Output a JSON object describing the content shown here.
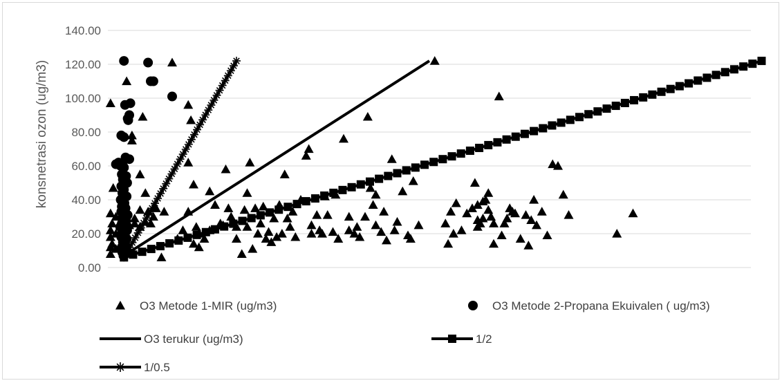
{
  "chart_data": {
    "type": "scatter",
    "title": "",
    "xlabel": "",
    "ylabel": "konsnetrasi ozon (ug/m3)",
    "ylim": [
      0,
      140
    ],
    "xlim": [
      0,
      120
    ],
    "y_ticks": [
      "0.00",
      "20.00",
      "40.00",
      "60.00",
      "80.00",
      "100.00",
      "120.00",
      "140.00"
    ],
    "grid": "horizontal",
    "legend_position": "bottom",
    "series": [
      {
        "name": "O3 Metode 1-MIR (ug/m3)",
        "marker": "triangle",
        "points": [
          [
            0.5,
            97
          ],
          [
            0.5,
            32
          ],
          [
            0.5,
            22
          ],
          [
            0.5,
            18
          ],
          [
            0.5,
            12
          ],
          [
            0.5,
            8
          ],
          [
            0.8,
            26
          ],
          [
            0.8,
            14
          ],
          [
            1,
            47
          ],
          [
            1.5,
            30
          ],
          [
            1.5,
            20
          ],
          [
            1.5,
            11
          ],
          [
            3,
            62
          ],
          [
            3,
            44
          ],
          [
            3,
            31
          ],
          [
            3,
            20
          ],
          [
            3.5,
            110
          ],
          [
            4,
            25
          ],
          [
            4.5,
            78
          ],
          [
            4.5,
            75
          ],
          [
            5,
            29
          ],
          [
            5,
            26
          ],
          [
            6,
            55
          ],
          [
            6,
            34
          ],
          [
            6,
            24
          ],
          [
            6.5,
            89
          ],
          [
            7,
            44
          ],
          [
            7,
            27
          ],
          [
            7.5,
            33
          ],
          [
            8,
            26
          ],
          [
            8.5,
            30
          ],
          [
            9,
            35
          ],
          [
            10,
            6
          ],
          [
            10.5,
            33
          ],
          [
            12,
            121
          ],
          [
            13,
            17
          ],
          [
            14,
            22
          ],
          [
            15,
            96
          ],
          [
            15,
            62
          ],
          [
            15,
            33
          ],
          [
            15.5,
            87
          ],
          [
            16,
            49
          ],
          [
            16,
            14
          ],
          [
            16.5,
            24
          ],
          [
            17,
            20
          ],
          [
            17,
            12
          ],
          [
            18,
            17
          ],
          [
            19,
            22
          ],
          [
            19,
            45
          ],
          [
            20,
            37
          ],
          [
            21,
            26
          ],
          [
            21.5,
            25
          ],
          [
            22,
            58
          ],
          [
            22.5,
            35
          ],
          [
            23,
            30
          ],
          [
            24,
            24
          ],
          [
            24,
            17
          ],
          [
            25,
            8
          ],
          [
            25.5,
            34
          ],
          [
            26,
            44
          ],
          [
            26,
            24
          ],
          [
            26.5,
            62
          ],
          [
            27,
            11
          ],
          [
            27.5,
            35
          ],
          [
            28,
            20
          ],
          [
            28.5,
            26
          ],
          [
            29,
            36
          ],
          [
            29.5,
            17
          ],
          [
            30,
            21
          ],
          [
            30.5,
            15
          ],
          [
            31,
            29
          ],
          [
            31.5,
            18
          ],
          [
            32,
            37
          ],
          [
            32.5,
            20
          ],
          [
            33,
            55
          ],
          [
            33.5,
            29
          ],
          [
            34,
            24
          ],
          [
            34.5,
            33
          ],
          [
            35,
            18
          ],
          [
            36,
            40
          ],
          [
            37,
            66
          ],
          [
            37.5,
            70
          ],
          [
            38,
            25
          ],
          [
            38,
            20
          ],
          [
            39,
            31
          ],
          [
            39.5,
            22
          ],
          [
            40,
            20
          ],
          [
            40.5,
            42
          ],
          [
            41,
            31
          ],
          [
            42,
            21
          ],
          [
            42.5,
            43
          ],
          [
            43,
            17
          ],
          [
            44,
            76
          ],
          [
            45,
            22
          ],
          [
            45,
            30
          ],
          [
            46,
            20
          ],
          [
            46.5,
            24
          ],
          [
            47,
            18
          ],
          [
            48,
            30
          ],
          [
            48.5,
            89
          ],
          [
            49,
            47
          ],
          [
            49.5,
            37
          ],
          [
            50,
            43
          ],
          [
            50,
            25
          ],
          [
            51,
            21
          ],
          [
            51.5,
            33
          ],
          [
            52,
            16
          ],
          [
            53,
            64
          ],
          [
            53.5,
            22
          ],
          [
            54,
            27
          ],
          [
            55,
            45
          ],
          [
            56,
            19
          ],
          [
            56.5,
            17
          ],
          [
            57,
            51
          ],
          [
            58,
            25
          ],
          [
            61,
            122
          ],
          [
            63,
            26
          ],
          [
            63.5,
            14
          ],
          [
            64,
            33
          ],
          [
            64.5,
            20
          ],
          [
            65,
            38
          ],
          [
            66,
            22
          ],
          [
            67,
            32
          ],
          [
            68,
            35
          ],
          [
            68.5,
            50
          ],
          [
            69,
            37
          ],
          [
            69,
            28
          ],
          [
            69,
            24
          ],
          [
            69.5,
            26
          ],
          [
            70,
            39
          ],
          [
            70,
            29
          ],
          [
            70.5,
            40
          ],
          [
            71,
            44
          ],
          [
            71,
            34
          ],
          [
            71.5,
            30
          ],
          [
            72,
            26
          ],
          [
            72,
            14
          ],
          [
            73,
            101
          ],
          [
            73.5,
            19
          ],
          [
            74,
            26
          ],
          [
            74.5,
            29
          ],
          [
            75,
            35
          ],
          [
            75.5,
            33
          ],
          [
            76,
            32
          ],
          [
            77,
            17
          ],
          [
            78,
            31
          ],
          [
            78.5,
            13
          ],
          [
            79,
            28
          ],
          [
            79.5,
            40
          ],
          [
            80,
            25
          ],
          [
            81,
            33
          ],
          [
            82,
            19
          ],
          [
            83,
            61
          ],
          [
            84,
            60
          ],
          [
            85,
            43
          ],
          [
            86,
            31
          ],
          [
            95,
            20
          ],
          [
            98,
            32
          ]
        ]
      },
      {
        "name": "O3 Metode 2-Propana Ekuivalen ( ug/m3)",
        "marker": "circle",
        "points": [
          [
            3,
            122
          ],
          [
            4.2,
            97
          ],
          [
            3.2,
            96
          ],
          [
            4,
            90
          ],
          [
            3.7,
            88
          ],
          [
            3.8,
            87
          ],
          [
            2.5,
            78
          ],
          [
            3,
            77
          ],
          [
            3.3,
            65
          ],
          [
            4,
            64
          ],
          [
            1.5,
            61
          ],
          [
            2,
            62
          ],
          [
            2.4,
            60
          ],
          [
            3,
            59
          ],
          [
            2.6,
            55
          ],
          [
            3.4,
            54
          ],
          [
            2.8,
            52
          ],
          [
            3.6,
            50
          ],
          [
            2.5,
            48
          ],
          [
            3,
            46
          ],
          [
            2.7,
            44
          ],
          [
            3.5,
            42
          ],
          [
            2.4,
            40
          ],
          [
            3.1,
            38
          ],
          [
            2.6,
            36
          ],
          [
            3.3,
            35
          ],
          [
            2.5,
            33
          ],
          [
            3.7,
            31
          ],
          [
            2.8,
            30
          ],
          [
            3.4,
            28
          ],
          [
            2.6,
            26
          ],
          [
            3,
            25
          ],
          [
            2.3,
            24
          ],
          [
            3.6,
            22
          ],
          [
            2.7,
            21
          ],
          [
            3.2,
            20
          ],
          [
            2.5,
            18
          ],
          [
            3.5,
            17
          ],
          [
            2.8,
            15
          ],
          [
            3.2,
            14
          ],
          [
            2.6,
            12
          ],
          [
            3.4,
            11
          ],
          [
            3,
            10
          ],
          [
            2.7,
            9
          ],
          [
            3.3,
            8
          ],
          [
            2.9,
            7
          ],
          [
            7.5,
            121
          ],
          [
            8,
            110
          ],
          [
            8.5,
            110
          ],
          [
            12,
            101
          ]
        ]
      },
      {
        "name": "O3 terukur (ug/m3)",
        "marker": "none",
        "line": [
          [
            3,
            7
          ],
          [
            60,
            122
          ]
        ]
      },
      {
        "name": "1/2",
        "marker": "square",
        "line": [
          [
            3,
            6
          ],
          [
            122,
            122
          ]
        ]
      },
      {
        "name": "1/0.5",
        "marker": "star",
        "line": [
          [
            3,
            6
          ],
          [
            24,
            122
          ]
        ]
      }
    ]
  }
}
